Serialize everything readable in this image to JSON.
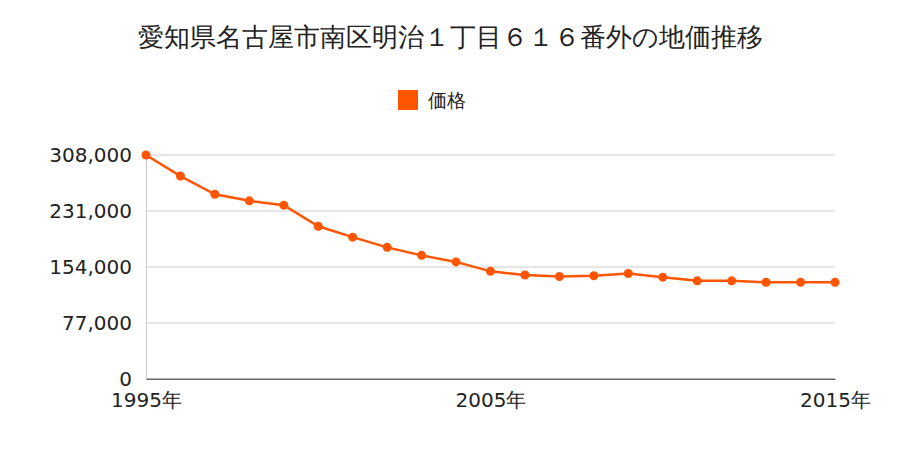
{
  "chart_data": {
    "type": "line",
    "title": "愛知県名古屋市南区明治１丁目６１６番外の地価推移",
    "x": [
      1995,
      1996,
      1997,
      1998,
      1999,
      2000,
      2001,
      2002,
      2003,
      2004,
      2005,
      2006,
      2007,
      2008,
      2009,
      2010,
      2011,
      2012,
      2013,
      2014,
      2015
    ],
    "series": [
      {
        "name": "価格",
        "color": "#ff5500",
        "marker": "circle",
        "values": [
          308000,
          279000,
          254000,
          245000,
          239000,
          210000,
          195000,
          181000,
          170000,
          161000,
          148000,
          143000,
          141000,
          142000,
          145000,
          140000,
          135000,
          135000,
          133000,
          133000,
          133000
        ]
      }
    ],
    "xlim": [
      1995,
      2015
    ],
    "xticks": [
      {
        "value": 1995,
        "label": "1995年"
      },
      {
        "value": 2005,
        "label": "2005年"
      },
      {
        "value": 2015,
        "label": "2015年"
      }
    ],
    "ylim": [
      0,
      308000
    ],
    "yticks": [
      0,
      {
        "value": 77000,
        "label": "77,000"
      },
      {
        "value": 154000,
        "label": "154,000"
      },
      {
        "value": 231000,
        "label": "231,000"
      },
      {
        "value": 308000,
        "label": "308,000"
      }
    ],
    "grid": true,
    "legend": "top"
  }
}
